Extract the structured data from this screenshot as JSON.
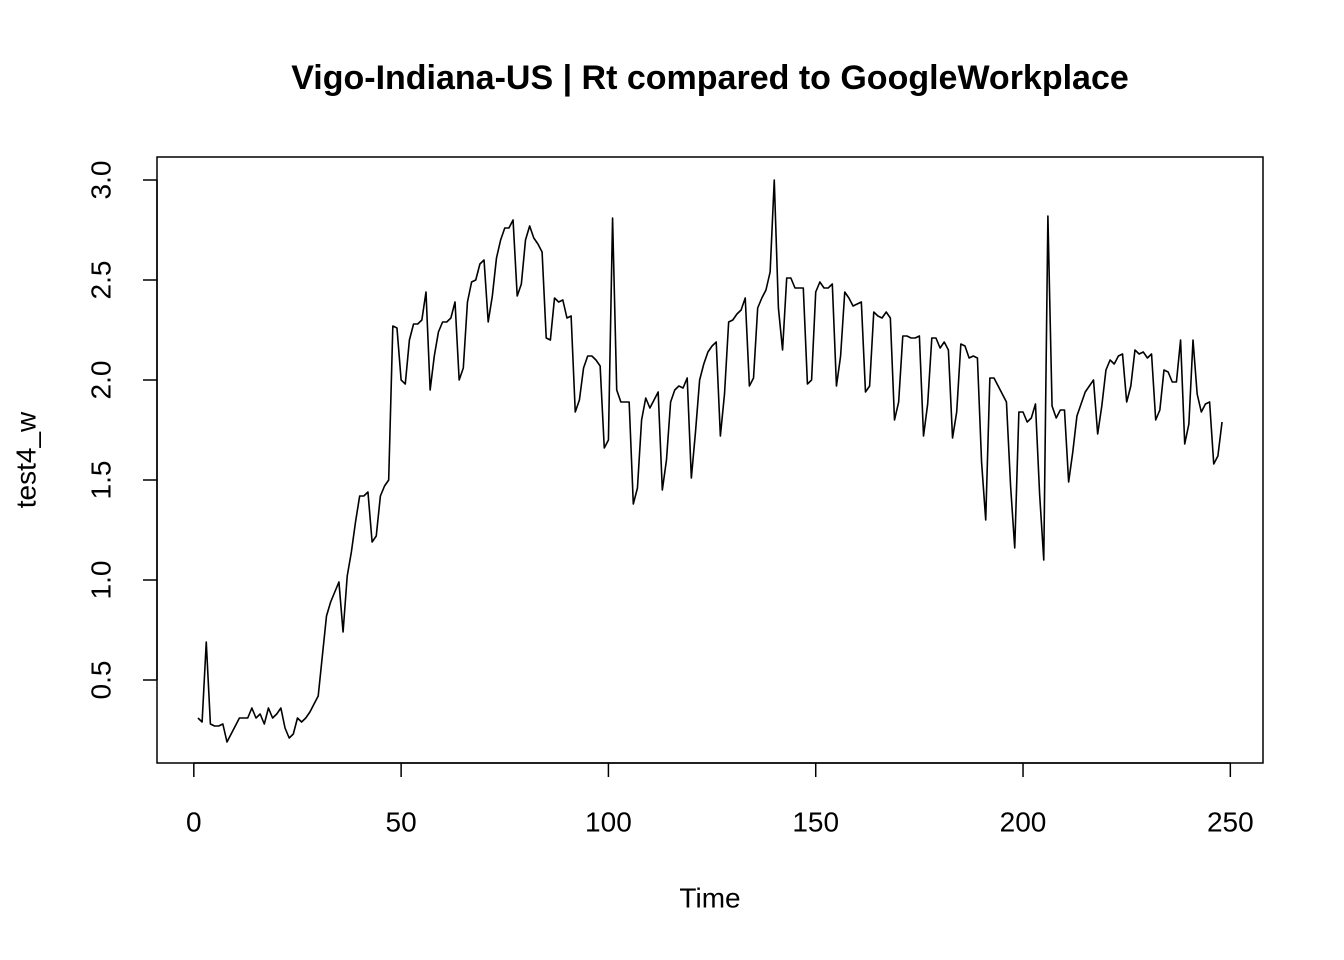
{
  "chart_data": {
    "type": "line",
    "title": "Vigo-Indiana-US | Rt compared to GoogleWorkplace",
    "xlabel": "Time",
    "ylabel": "test4_w",
    "xlim": [
      -8.88,
      257.88
    ],
    "ylim": [
      0.085,
      3.115
    ],
    "xticks": [
      0,
      50,
      100,
      150,
      200,
      250
    ],
    "yticks": [
      0.5,
      {
        "value": 1,
        "label": "1.0"
      },
      1.5,
      {
        "value": 2,
        "label": "2.0"
      },
      2.5,
      {
        "value": 3,
        "label": "3.0"
      }
    ],
    "color": "#000000",
    "x": [
      1,
      2,
      3,
      4,
      5,
      6,
      7,
      8,
      9,
      10,
      11,
      12,
      13,
      14,
      15,
      16,
      17,
      18,
      19,
      20,
      21,
      22,
      23,
      24,
      25,
      26,
      27,
      28,
      29,
      30,
      31,
      32,
      33,
      34,
      35,
      36,
      37,
      38,
      39,
      40,
      41,
      42,
      43,
      44,
      45,
      46,
      47,
      48,
      49,
      50,
      51,
      52,
      53,
      54,
      55,
      56,
      57,
      58,
      59,
      60,
      61,
      62,
      63,
      64,
      65,
      66,
      67,
      68,
      69,
      70,
      71,
      72,
      73,
      74,
      75,
      76,
      77,
      78,
      79,
      80,
      81,
      82,
      83,
      84,
      85,
      86,
      87,
      88,
      89,
      90,
      91,
      92,
      93,
      94,
      95,
      96,
      97,
      98,
      99,
      100,
      101,
      102,
      103,
      104,
      105,
      106,
      107,
      108,
      109,
      110,
      111,
      112,
      113,
      114,
      115,
      116,
      117,
      118,
      119,
      120,
      121,
      122,
      123,
      124,
      125,
      126,
      127,
      128,
      129,
      130,
      131,
      132,
      133,
      134,
      135,
      136,
      137,
      138,
      139,
      140,
      141,
      142,
      143,
      144,
      145,
      146,
      147,
      148,
      149,
      150,
      151,
      152,
      153,
      154,
      155,
      156,
      157,
      158,
      159,
      160,
      161,
      162,
      163,
      164,
      165,
      166,
      167,
      168,
      169,
      170,
      171,
      172,
      173,
      174,
      175,
      176,
      177,
      178,
      179,
      180,
      181,
      182,
      183,
      184,
      185,
      186,
      187,
      188,
      189,
      190,
      191,
      192,
      193,
      194,
      195,
      196,
      197,
      198,
      199,
      200,
      201,
      202,
      203,
      204,
      205,
      206,
      207,
      208,
      209,
      210,
      211,
      212,
      213,
      214,
      215,
      216,
      217,
      218,
      219,
      220,
      221,
      222,
      223,
      224,
      225,
      226,
      227,
      228,
      229,
      230,
      231,
      232,
      233,
      234,
      235,
      236,
      237,
      238,
      239,
      240,
      241,
      242,
      243,
      244,
      245,
      246,
      247,
      248
    ],
    "values": [
      0.31,
      0.29,
      0.69,
      0.28,
      0.27,
      0.27,
      0.28,
      0.19,
      0.23,
      0.27,
      0.31,
      0.31,
      0.31,
      0.36,
      0.31,
      0.33,
      0.28,
      0.36,
      0.31,
      0.33,
      0.36,
      0.26,
      0.21,
      0.23,
      0.31,
      0.29,
      0.31,
      0.34,
      0.38,
      0.42,
      0.62,
      0.82,
      0.89,
      0.94,
      0.99,
      0.74,
      1.02,
      1.14,
      1.29,
      1.42,
      1.42,
      1.44,
      1.19,
      1.22,
      1.42,
      1.47,
      1.5,
      2.27,
      2.26,
      2.0,
      1.98,
      2.2,
      2.28,
      2.28,
      2.3,
      2.44,
      1.95,
      2.12,
      2.24,
      2.29,
      2.29,
      2.31,
      2.39,
      2.0,
      2.06,
      2.39,
      2.49,
      2.5,
      2.58,
      2.6,
      2.29,
      2.42,
      2.61,
      2.7,
      2.76,
      2.76,
      2.8,
      2.42,
      2.48,
      2.7,
      2.77,
      2.71,
      2.68,
      2.64,
      2.21,
      2.2,
      2.41,
      2.39,
      2.4,
      2.31,
      2.32,
      1.84,
      1.9,
      2.06,
      2.12,
      2.12,
      2.1,
      2.07,
      1.66,
      1.7,
      2.81,
      1.95,
      1.89,
      1.89,
      1.89,
      1.38,
      1.46,
      1.8,
      1.91,
      1.86,
      1.9,
      1.94,
      1.45,
      1.6,
      1.89,
      1.95,
      1.97,
      1.96,
      2.01,
      1.51,
      1.74,
      2.0,
      2.08,
      2.14,
      2.17,
      2.19,
      1.72,
      1.93,
      2.29,
      2.3,
      2.33,
      2.35,
      2.41,
      1.97,
      2.01,
      2.36,
      2.41,
      2.45,
      2.54,
      3.0,
      2.36,
      2.15,
      2.51,
      2.51,
      2.46,
      2.46,
      2.46,
      1.98,
      2.0,
      2.44,
      2.49,
      2.46,
      2.46,
      2.48,
      1.97,
      2.12,
      2.44,
      2.41,
      2.37,
      2.38,
      2.39,
      1.94,
      1.97,
      2.34,
      2.32,
      2.31,
      2.34,
      2.31,
      1.8,
      1.89,
      2.22,
      2.22,
      2.21,
      2.21,
      2.22,
      1.72,
      1.88,
      2.21,
      2.21,
      2.16,
      2.19,
      2.15,
      1.71,
      1.84,
      2.18,
      2.17,
      2.11,
      2.12,
      2.11,
      1.59,
      1.3,
      2.01,
      2.01,
      1.97,
      1.93,
      1.89,
      1.47,
      1.16,
      1.84,
      1.84,
      1.79,
      1.81,
      1.88,
      1.43,
      1.1,
      2.82,
      1.87,
      1.81,
      1.85,
      1.85,
      1.49,
      1.64,
      1.82,
      1.88,
      1.94,
      1.97,
      2.0,
      1.73,
      1.87,
      2.05,
      2.1,
      2.08,
      2.12,
      2.13,
      1.89,
      1.97,
      2.15,
      2.13,
      2.14,
      2.11,
      2.13,
      1.8,
      1.85,
      2.05,
      2.04,
      1.99,
      1.99,
      2.2,
      1.68,
      1.78,
      2.2,
      1.93,
      1.84,
      1.88,
      1.89,
      1.58,
      1.62,
      1.79
    ]
  }
}
